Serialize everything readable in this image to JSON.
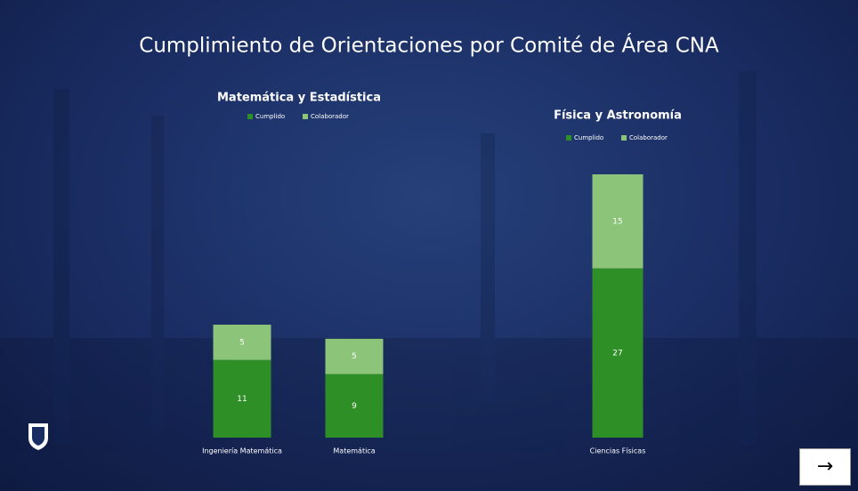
{
  "title": "Cumplimiento de Orientaciones por Comité de Área CNA",
  "chart_data": [
    {
      "type": "stacked-bar",
      "title": "Matemática y Estadística",
      "categories": [
        "Ingeniería Matemática",
        "Matemática"
      ],
      "series": [
        {
          "name": "Cumplido",
          "color": "#2f8f27",
          "values": [
            11,
            9
          ]
        },
        {
          "name": "Colaborador",
          "color": "#8cc47a",
          "values": [
            5,
            5
          ]
        }
      ]
    },
    {
      "type": "stacked-bar",
      "title": "Física y Astronomía",
      "categories": [
        "Ciencias Físicas"
      ],
      "series": [
        {
          "name": "Cumplido",
          "color": "#2f8f27",
          "values": [
            27
          ]
        },
        {
          "name": "Colaborador",
          "color": "#8cc47a",
          "values": [
            15
          ]
        }
      ]
    }
  ]
}
